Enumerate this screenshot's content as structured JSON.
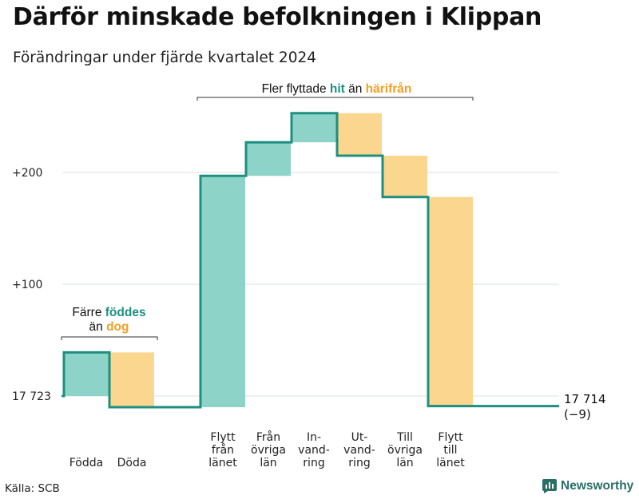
{
  "header": {
    "title": "Därför minskade befolkningen i Klippan",
    "subtitle": "Förändringar under fjärde kvartalet 2024"
  },
  "footer": {
    "source": "Källa: SCB",
    "brand": "Newsworthy"
  },
  "colors": {
    "increase": "#8dd3c7",
    "decrease": "#fbd68e",
    "line": "#1e8f80",
    "grid": "#dedfe6",
    "highlight_inc": "#1e8f80",
    "highlight_dec": "#f2a023"
  },
  "chart_data": {
    "type": "waterfall",
    "title": "Därför minskade befolkningen i Klippan",
    "subtitle": "Förändringar under fjärde kvartalet 2024",
    "y_baseline": 17723,
    "y_ticks": [
      {
        "value": 200,
        "label": "+200"
      },
      {
        "value": 100,
        "label": "+100"
      },
      {
        "value": 0,
        "label": "17 723"
      }
    ],
    "steps": [
      {
        "category": "Födda",
        "label_lines": [
          "Födda"
        ],
        "change": 39,
        "kind": "increase"
      },
      {
        "category": "Döda",
        "label_lines": [
          "Döda"
        ],
        "change": -49,
        "kind": "decrease"
      },
      {
        "category": "Flytt från länet",
        "label_lines": [
          "Flytt",
          "från",
          "länet"
        ],
        "change": 207,
        "kind": "increase"
      },
      {
        "category": "Från övriga län",
        "label_lines": [
          "Från",
          "övriga",
          "län"
        ],
        "change": 30,
        "kind": "increase"
      },
      {
        "category": "Invandring",
        "label_lines": [
          "In-",
          "vand-",
          "ring"
        ],
        "change": 26,
        "kind": "increase"
      },
      {
        "category": "Utvandring",
        "label_lines": [
          "Ut-",
          "vand-",
          "ring"
        ],
        "change": -38,
        "kind": "decrease"
      },
      {
        "category": "Till övriga län",
        "label_lines": [
          "Till",
          "övriga",
          "län"
        ],
        "change": -37,
        "kind": "decrease"
      },
      {
        "category": "Flytt till länet",
        "label_lines": [
          "Flytt",
          "till",
          "länet"
        ],
        "change": -187,
        "kind": "decrease"
      }
    ],
    "end_value": 17714,
    "end_label": "17 714",
    "net_change_label": "(−9)",
    "annotations": [
      {
        "group": "births",
        "spans": [
          0,
          1
        ],
        "line1": [
          [
            "Färre ",
            "plain"
          ],
          [
            "föddes",
            "inc"
          ]
        ],
        "line2": [
          [
            "än ",
            "plain"
          ],
          [
            "dog",
            "dec"
          ]
        ]
      },
      {
        "group": "migration",
        "spans": [
          2,
          7
        ],
        "line1": [
          [
            "Fler flyttade ",
            "plain"
          ],
          [
            "hit",
            "inc"
          ],
          [
            " än ",
            "plain"
          ],
          [
            "härifrån",
            "dec"
          ]
        ]
      }
    ]
  }
}
